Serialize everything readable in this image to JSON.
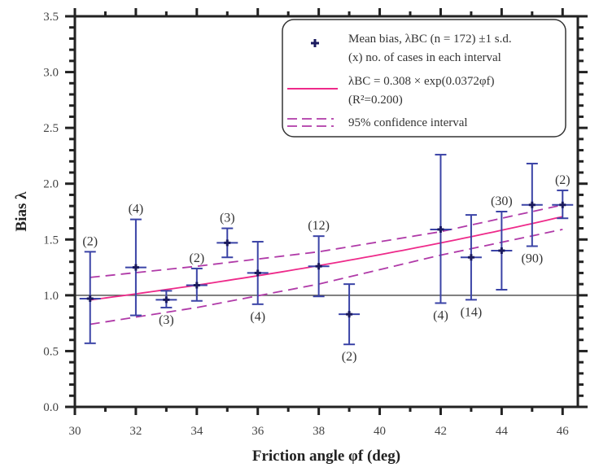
{
  "chart_data": {
    "type": "scatter",
    "title": "",
    "xlabel": "Friction angle φf (deg)",
    "ylabel": "Bias λ",
    "xlim": [
      30,
      46.5
    ],
    "ylim": [
      0,
      3.5
    ],
    "xticks": [
      "30",
      "32",
      "34",
      "36",
      "38",
      "40",
      "42",
      "44",
      "46"
    ],
    "yticks": [
      "0.0",
      "0.5",
      "1.0",
      "1.5",
      "2.0",
      "2.5",
      "3.0",
      "3.5"
    ],
    "grid": false,
    "reference_line_y": 1.0,
    "legend_position": "top-right",
    "legend": {
      "mean": "Mean bias, λBC (n = 172)  ±1 s.d.",
      "counts": "(x) no. of cases in each interval",
      "fit": "λBC = 0.308 × exp(0.0372φf)",
      "r2": "(R²=0.200)",
      "ci": "95% confidence interval"
    },
    "colors": {
      "points": "#1a1a5e",
      "errorbars": "#3a43a6",
      "fit": "#ee2a8a",
      "ci": "#b03aa8",
      "reference": "#555555"
    },
    "fit": {
      "a": 0.308,
      "b": 0.0372,
      "r2": 0.2
    },
    "ci_upper": [
      [
        30.5,
        1.16
      ],
      [
        34,
        1.26
      ],
      [
        38,
        1.39
      ],
      [
        42,
        1.57
      ],
      [
        46,
        1.81
      ]
    ],
    "ci_lower": [
      [
        30.5,
        0.74
      ],
      [
        34,
        0.89
      ],
      [
        38,
        1.1
      ],
      [
        42,
        1.36
      ],
      [
        46,
        1.59
      ]
    ],
    "points": [
      {
        "x": 30.5,
        "mean": 0.97,
        "upper": 1.39,
        "lower": 0.57,
        "n": "(2)",
        "label_pos": "above"
      },
      {
        "x": 32,
        "mean": 1.25,
        "upper": 1.68,
        "lower": 0.82,
        "n": "(4)",
        "label_pos": "above"
      },
      {
        "x": 33,
        "mean": 0.96,
        "upper": 1.04,
        "lower": 0.89,
        "n": "(3)",
        "label_pos": "below"
      },
      {
        "x": 34,
        "mean": 1.09,
        "upper": 1.24,
        "lower": 0.95,
        "n": "(2)",
        "label_pos": "above"
      },
      {
        "x": 35,
        "mean": 1.47,
        "upper": 1.6,
        "lower": 1.34,
        "n": "(3)",
        "label_pos": "above"
      },
      {
        "x": 36,
        "mean": 1.2,
        "upper": 1.48,
        "lower": 0.92,
        "n": "(4)",
        "label_pos": "below"
      },
      {
        "x": 38,
        "mean": 1.26,
        "upper": 1.53,
        "lower": 0.99,
        "n": "(12)",
        "label_pos": "above"
      },
      {
        "x": 39,
        "mean": 0.83,
        "upper": 1.1,
        "lower": 0.56,
        "n": "(2)",
        "label_pos": "below"
      },
      {
        "x": 42,
        "mean": 1.59,
        "upper": 2.26,
        "lower": 0.93,
        "n": "(4)",
        "label_pos": "below"
      },
      {
        "x": 43,
        "mean": 1.34,
        "upper": 1.72,
        "lower": 0.96,
        "n": "(14)",
        "label_pos": "below"
      },
      {
        "x": 44,
        "mean": 1.4,
        "upper": 1.75,
        "lower": 1.05,
        "n": "(30)",
        "label_pos": "above"
      },
      {
        "x": 45,
        "mean": 1.81,
        "upper": 2.18,
        "lower": 1.44,
        "n": "(90)",
        "label_pos": "below"
      },
      {
        "x": 46,
        "mean": 1.81,
        "upper": 1.94,
        "lower": 1.69,
        "n": "(2)",
        "label_pos": "above"
      }
    ]
  }
}
